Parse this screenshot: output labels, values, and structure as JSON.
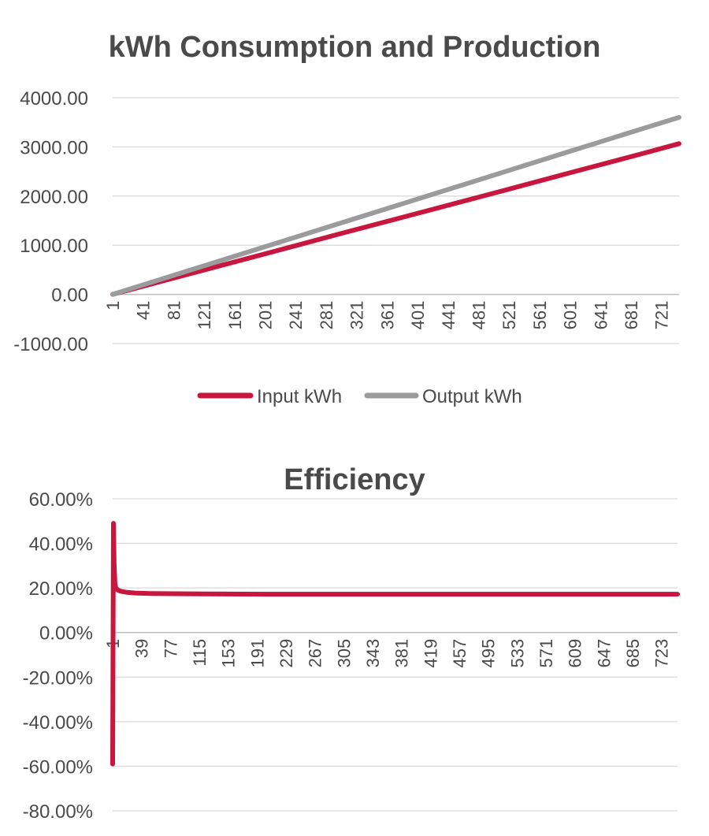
{
  "chart_data": [
    {
      "type": "line",
      "title": "kWh Consumption and Production",
      "xlabel": "",
      "ylabel": "",
      "ylim": [
        -1000,
        4000
      ],
      "y_ticks": [
        "4000.00",
        "3000.00",
        "2000.00",
        "1000.00",
        "0.00",
        "-1000.00"
      ],
      "y_tick_values": [
        4000,
        3000,
        2000,
        1000,
        0,
        -1000
      ],
      "x_ticks": [
        1,
        41,
        81,
        121,
        161,
        201,
        241,
        281,
        321,
        361,
        401,
        441,
        481,
        521,
        561,
        601,
        641,
        681,
        721
      ],
      "x_range": [
        1,
        744
      ],
      "grid": true,
      "legend_position": "bottom",
      "series": [
        {
          "name": "Input kWh",
          "color": "#c8163f",
          "x": [
            1,
            100,
            200,
            300,
            400,
            500,
            600,
            700,
            744
          ],
          "values": [
            0,
            410,
            820,
            1235,
            1645,
            2055,
            2470,
            2880,
            3065
          ]
        },
        {
          "name": "Output kWh",
          "color": "#9b9b9d",
          "x": [
            1,
            100,
            200,
            300,
            400,
            500,
            600,
            700,
            744
          ],
          "values": [
            0,
            480,
            965,
            1450,
            1935,
            2420,
            2905,
            3390,
            3600
          ]
        }
      ]
    },
    {
      "type": "line",
      "title": "Efficiency",
      "xlabel": "",
      "ylabel": "",
      "ylim": [
        -0.8,
        0.6
      ],
      "y_ticks": [
        "60.00%",
        "40.00%",
        "20.00%",
        "0.00%",
        "-20.00%",
        "-40.00%",
        "-60.00%",
        "-80.00%"
      ],
      "y_tick_values": [
        0.6,
        0.4,
        0.2,
        0,
        -0.2,
        -0.4,
        -0.6,
        -0.8
      ],
      "x_ticks": [
        1,
        39,
        77,
        115,
        153,
        191,
        229,
        267,
        305,
        343,
        381,
        419,
        457,
        495,
        533,
        571,
        609,
        647,
        685,
        723
      ],
      "x_range": [
        1,
        744
      ],
      "grid": true,
      "series": [
        {
          "name": "Efficiency",
          "color": "#c8163f",
          "x": [
            1,
            2,
            3,
            4,
            5,
            8,
            12,
            20,
            30,
            50,
            80,
            120,
            200,
            400,
            600,
            744
          ],
          "values": [
            -0.59,
            0.49,
            0.3,
            0.22,
            0.2,
            0.19,
            0.185,
            0.18,
            0.177,
            0.175,
            0.174,
            0.173,
            0.172,
            0.172,
            0.172,
            0.172
          ]
        }
      ]
    }
  ]
}
